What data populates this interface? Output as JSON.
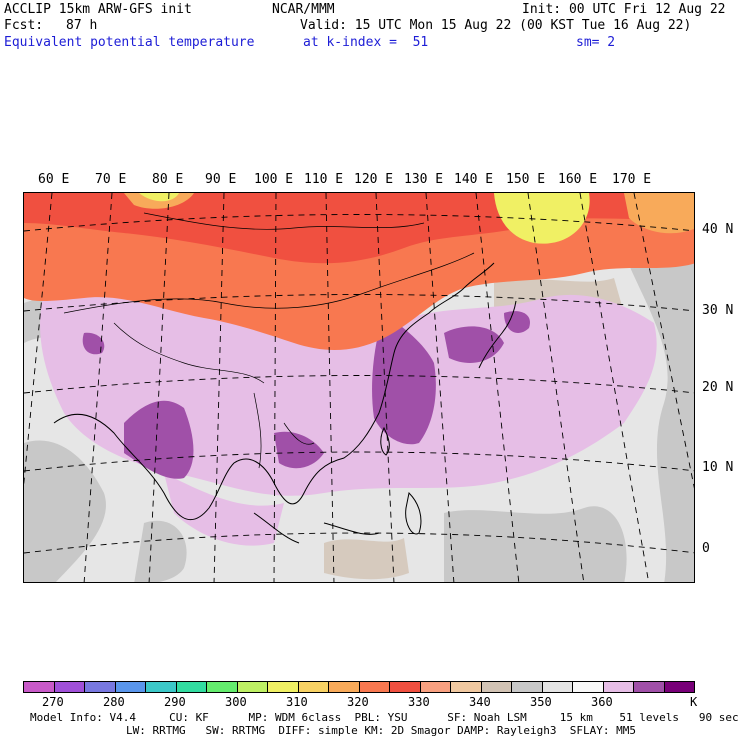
{
  "header": {
    "model_line": "ACCLIP 15km ARW-GFS init",
    "org": "NCAR/MMM",
    "init": "Init: 00 UTC Fri 12 Aug 22",
    "fcst_label": "Fcst:",
    "fcst_value": "87 h",
    "valid": "Valid: 15 UTC Mon 15 Aug 22 (00 KST Tue 16 Aug 22)",
    "field": "Equivalent potential temperature",
    "level": "at k-index =  51",
    "smooth": "sm= 2"
  },
  "map": {
    "lon_labels": [
      "60 E",
      "70 E",
      "80 E",
      "90 E",
      "100 E",
      "110 E",
      "120 E",
      "130 E",
      "140 E",
      "150 E",
      "160 E",
      "170 E"
    ],
    "lat_labels": [
      "40 N",
      "30 N",
      "20 N",
      "10 N",
      "0"
    ]
  },
  "colorbar": {
    "colors": [
      "#c85ac8",
      "#a050d8",
      "#7878e0",
      "#5a96ec",
      "#3cc8c8",
      "#32dca0",
      "#64ec6e",
      "#bef064",
      "#f0f064",
      "#f8d264",
      "#f8aa5a",
      "#f87850",
      "#f05040",
      "#f8a080",
      "#f0c8a0",
      "#d2c3b4",
      "#c8c8c8",
      "#e4e4e4",
      "#f8f8f8",
      "#e6bee6",
      "#a050a8",
      "#780078"
    ],
    "labels": [
      "270",
      "280",
      "290",
      "300",
      "310",
      "320",
      "330",
      "340",
      "350",
      "360"
    ],
    "units": "K"
  },
  "footer": {
    "line1": "Model Info: V4.4     CU: KF      MP: WDM 6class  PBL: YSU      SF: Noah LSM     15 km    51 levels   90 sec",
    "line2": "LW: RRTMG   SW: RRTMG  DIFF: simple KM: 2D Smagor DAMP: Rayleigh3  SFLAY: MM5"
  }
}
